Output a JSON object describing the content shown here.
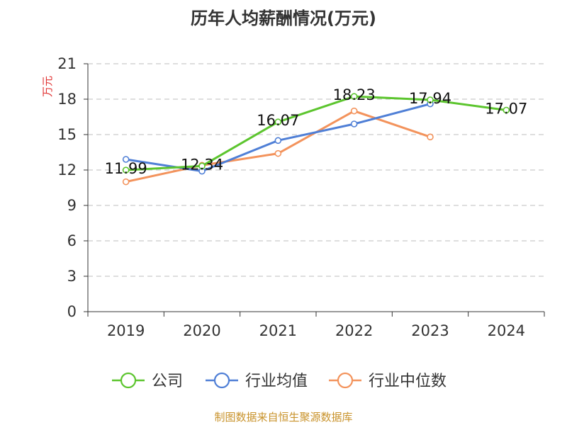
{
  "chart_data": {
    "type": "line",
    "title": "历年人均薪酬情况(万元)",
    "ylabel": "万元",
    "xlabel": "",
    "categories": [
      "2019",
      "2020",
      "2021",
      "2022",
      "2023",
      "2024"
    ],
    "yticks": [
      0,
      3,
      6,
      9,
      12,
      15,
      18,
      21
    ],
    "ylim": [
      0,
      21
    ],
    "grid": true,
    "legend_position": "bottom",
    "series": [
      {
        "name": "公司",
        "color": "#5cc52e",
        "values": [
          11.99,
          12.34,
          16.07,
          18.23,
          17.94,
          17.07
        ],
        "labels": [
          "11.99",
          "12.34",
          "16.07",
          "18.23",
          "17.94",
          "17.07"
        ]
      },
      {
        "name": "行业均值",
        "color": "#4f7fd6",
        "values": [
          12.9,
          11.9,
          14.5,
          15.9,
          17.6,
          null
        ],
        "labels": []
      },
      {
        "name": "行业中位数",
        "color": "#f3935c",
        "values": [
          11.0,
          12.4,
          13.4,
          17.0,
          14.8,
          null
        ],
        "labels": []
      }
    ]
  },
  "source": "制图数据来自恒生聚源数据库"
}
